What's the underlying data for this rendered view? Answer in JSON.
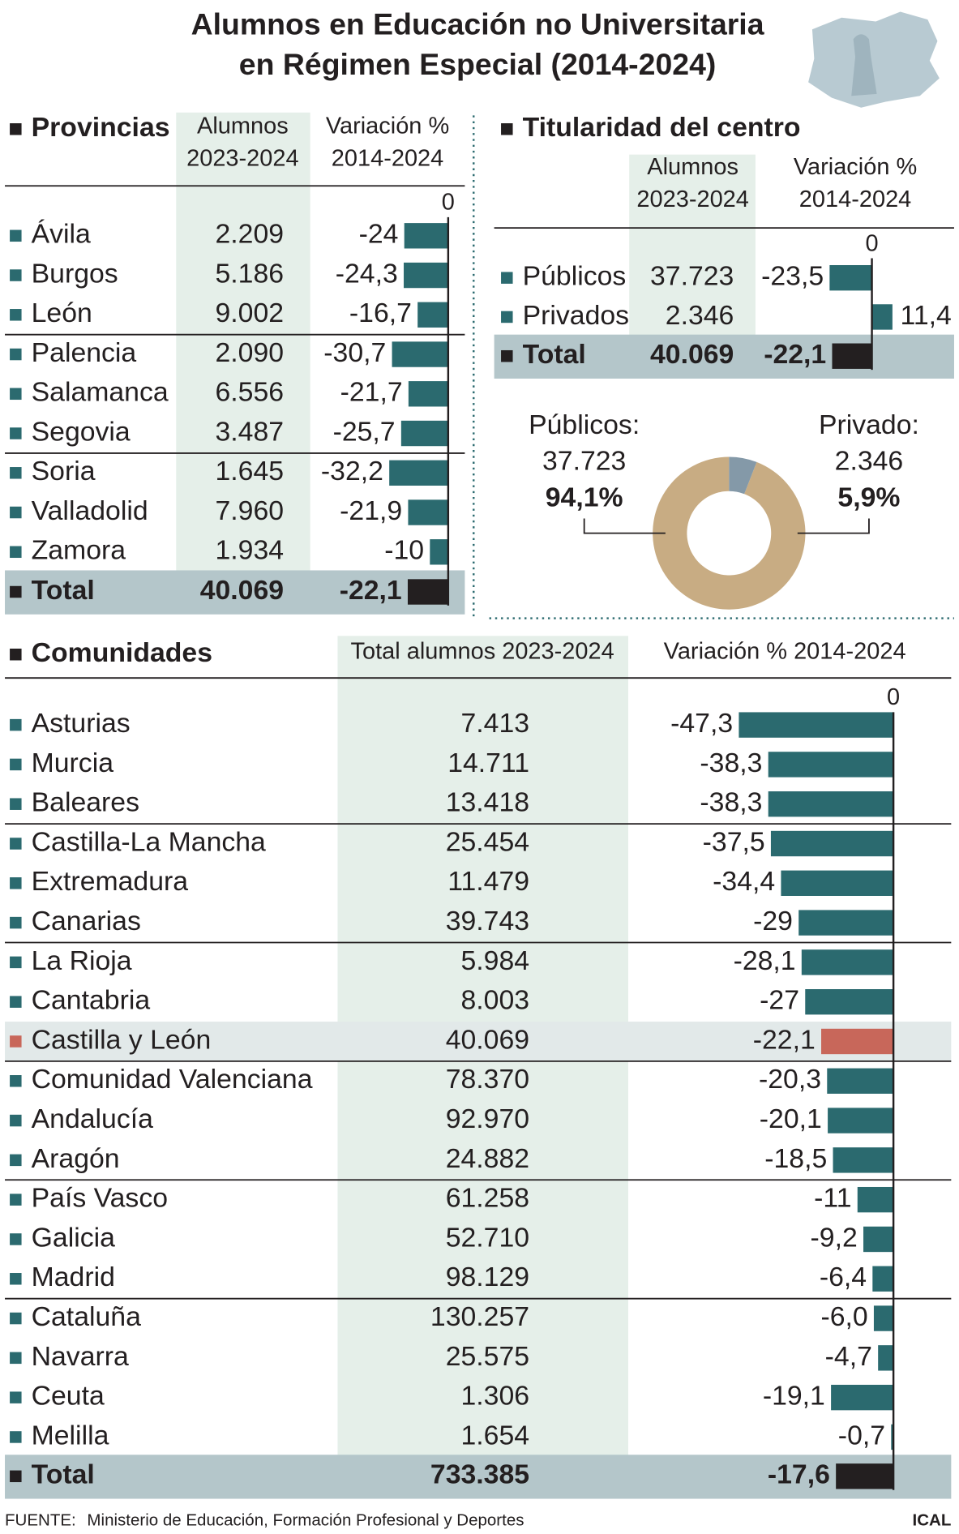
{
  "title": [
    "Alumnos en Educación no Universitaria",
    "en Régimen Especial (2014-2024)"
  ],
  "provincias": {
    "heading": "Provincias",
    "columns": [
      [
        "Alumnos",
        "2023-2024"
      ],
      [
        "Variación %",
        "2014-2024"
      ]
    ],
    "zero_tick": 0,
    "bar_color": "#2b6a6f",
    "total_color": "#231f20",
    "rows": [
      {
        "name": "Ávila",
        "alumnos": "2.209",
        "variacion": -24
      },
      {
        "name": "Burgos",
        "alumnos": "5.186",
        "variacion": -24.3,
        "variacion_label": "-24,3"
      },
      {
        "name": "León",
        "alumnos": "9.002",
        "variacion": -16.7,
        "variacion_label": "-16,7"
      },
      {
        "name": "Palencia",
        "alumnos": "2.090",
        "variacion": -30.7,
        "variacion_label": "-30,7"
      },
      {
        "name": "Salamanca",
        "alumnos": "6.556",
        "variacion": -21.7,
        "variacion_label": "-21,7"
      },
      {
        "name": "Segovia",
        "alumnos": "3.487",
        "variacion": -25.7,
        "variacion_label": "-25,7"
      },
      {
        "name": "Soria",
        "alumnos": "1.645",
        "variacion": -32.2,
        "variacion_label": "-32,2"
      },
      {
        "name": "Valladolid",
        "alumnos": "7.960",
        "variacion": -21.9,
        "variacion_label": "-21,9"
      },
      {
        "name": "Zamora",
        "alumnos": "1.934",
        "variacion": -10
      }
    ],
    "total": {
      "name": "Total",
      "alumnos": "40.069",
      "variacion": -22.1,
      "variacion_label": "-22,1"
    }
  },
  "titularidad": {
    "heading": "Titularidad del centro",
    "columns": [
      [
        "Alumnos",
        "2023-2024"
      ],
      [
        "Variación %",
        "2014-2024"
      ]
    ],
    "zero_tick": 0,
    "bar_color": "#2b6a6f",
    "total_color": "#231f20",
    "rows": [
      {
        "name": "Públicos",
        "alumnos": "37.723",
        "variacion": -23.5,
        "variacion_label": "-23,5"
      },
      {
        "name": "Privados",
        "alumnos": "2.346",
        "variacion": 11.4,
        "variacion_label": "11,4"
      }
    ],
    "total": {
      "name": "Total",
      "alumnos": "40.069",
      "variacion": -22.1,
      "variacion_label": "-22,1"
    }
  },
  "donut": {
    "slices": [
      {
        "label": "Públicos:",
        "count": "37.723",
        "percent": 94.1,
        "percent_label": "94,1%",
        "color": "#c8ac83"
      },
      {
        "label": "Privado:",
        "count": "2.346",
        "percent": 5.9,
        "percent_label": "5,9%",
        "color": "#8499a8"
      }
    ]
  },
  "comunidades": {
    "heading": "Comunidades",
    "columns": [
      [
        "Total alumnos 2023-2024"
      ],
      [
        "Variación % 2014-2024"
      ]
    ],
    "zero_tick": 0,
    "bar_color": "#2b6a6f",
    "total_color": "#231f20",
    "rows": [
      {
        "name": "Asturias",
        "alumnos": "7.413",
        "variacion": -47.3,
        "variacion_label": "-47,3"
      },
      {
        "name": "Murcia",
        "alumnos": "14.711",
        "variacion": -38.3,
        "variacion_label": "-38,3"
      },
      {
        "name": "Baleares",
        "alumnos": "13.418",
        "variacion": -38.3,
        "variacion_label": "-38,3"
      },
      {
        "name": "Castilla-La Mancha",
        "alumnos": "25.454",
        "variacion": -37.5,
        "variacion_label": "-37,5"
      },
      {
        "name": "Extremadura",
        "alumnos": "11.479",
        "variacion": -34.4,
        "variacion_label": "-34,4"
      },
      {
        "name": "Canarias",
        "alumnos": "39.743",
        "variacion": -29
      },
      {
        "name": "La Rioja",
        "alumnos": "5.984",
        "variacion": -28.1,
        "variacion_label": "-28,1"
      },
      {
        "name": "Cantabria",
        "alumnos": "8.003",
        "variacion": -27
      },
      {
        "name": "Castilla y León",
        "alumnos": "40.069",
        "variacion": -22.1,
        "variacion_label": "-22,1",
        "color": "#c8675a",
        "highlight": true
      },
      {
        "name": "Comunidad Valenciana",
        "alumnos": "78.370",
        "variacion": -20.3,
        "variacion_label": "-20,3"
      },
      {
        "name": "Andalucía",
        "alumnos": "92.970",
        "variacion": -20.1,
        "variacion_label": "-20,1"
      },
      {
        "name": "Aragón",
        "alumnos": "24.882",
        "variacion": -18.5,
        "variacion_label": "-18,5"
      },
      {
        "name": "País Vasco",
        "alumnos": "61.258",
        "variacion": -11
      },
      {
        "name": "Galicia",
        "alumnos": "52.710",
        "variacion": -9.2,
        "variacion_label": "-9,2"
      },
      {
        "name": "Madrid",
        "alumnos": "98.129",
        "variacion": -6.4,
        "variacion_label": "-6,4"
      },
      {
        "name": "Cataluña",
        "alumnos": "130.257",
        "variacion": -6,
        "variacion_label": "-6,0"
      },
      {
        "name": "Navarra",
        "alumnos": "25.575",
        "variacion": -4.7,
        "variacion_label": "-4,7"
      },
      {
        "name": "Ceuta",
        "alumnos": "1.306",
        "variacion": -19.1,
        "variacion_label": "-19,1"
      },
      {
        "name": "Melilla",
        "alumnos": "1.654",
        "variacion": -0.7,
        "variacion_label": "-0,7"
      }
    ],
    "total": {
      "name": "Total",
      "alumnos": "733.385",
      "variacion": -17.6,
      "variacion_label": "-17,6"
    }
  },
  "source_label": "FUENTE:",
  "source": "Ministerio de Educación, Formación Profesional y Deportes",
  "brand": "ICAL"
}
